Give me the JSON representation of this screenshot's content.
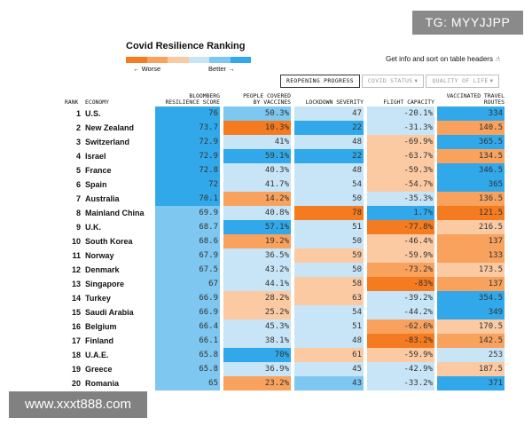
{
  "badge": "TG: MYYJJPP",
  "watermark": "www.xxxt888.com",
  "title": "Covid Resilience Ranking",
  "legend": {
    "worse": "← Worse",
    "better": "Better →",
    "colors": [
      "#f47b20",
      "#f8a25e",
      "#fbcaa3",
      "#c8e5f7",
      "#7dc7f0",
      "#31a8ea"
    ]
  },
  "info": {
    "text": "Get info and sort on table headers",
    "icon": "pointing-hand-icon"
  },
  "tabs": [
    {
      "label": "REOPENING PROGRESS",
      "arrow": ""
    },
    {
      "label": "COVID STATUS",
      "arrow": "▼"
    },
    {
      "label": "QUALITY OF LIFE",
      "arrow": "▼"
    }
  ],
  "headers": {
    "rank": "RANK",
    "economy": "ECONOMY",
    "resilience": [
      "BLOOMBERG",
      "RESILIENCE SCORE"
    ],
    "vaccines": [
      "PEOPLE COVERED",
      "BY VACCINES"
    ],
    "lockdown": "LOCKDOWN SEVERITY",
    "flight": "FLIGHT CAPACITY",
    "routes": [
      "VACCINATED TRAVEL",
      "ROUTES"
    ]
  },
  "rows": [
    {
      "rank": "1",
      "economy": "U.S.",
      "res": "76",
      "vac": "50.3%",
      "lock": "47",
      "flight": "-20.1%",
      "routes": "334",
      "colors": [
        "#31a8ea",
        "#7dc7f0",
        "#c8e5f7",
        "#c8e5f7",
        "#31a8ea"
      ]
    },
    {
      "rank": "2",
      "economy": "New Zealand",
      "res": "73.7",
      "vac": "10.3%",
      "lock": "22",
      "flight": "-31.3%",
      "routes": "140.5",
      "colors": [
        "#31a8ea",
        "#f47b20",
        "#31a8ea",
        "#c8e5f7",
        "#f8a25e"
      ]
    },
    {
      "rank": "3",
      "economy": "Switzerland",
      "res": "72.9",
      "vac": "41%",
      "lock": "48",
      "flight": "-69.9%",
      "routes": "365.5",
      "colors": [
        "#31a8ea",
        "#c8e5f7",
        "#c8e5f7",
        "#fbcaa3",
        "#31a8ea"
      ]
    },
    {
      "rank": "4",
      "economy": "Israel",
      "res": "72.9",
      "vac": "59.1%",
      "lock": "22",
      "flight": "-63.7%",
      "routes": "134.5",
      "colors": [
        "#31a8ea",
        "#31a8ea",
        "#31a8ea",
        "#fbcaa3",
        "#f8a25e"
      ]
    },
    {
      "rank": "5",
      "economy": "France",
      "res": "72.8",
      "vac": "40.3%",
      "lock": "48",
      "flight": "-59.3%",
      "routes": "346.5",
      "colors": [
        "#31a8ea",
        "#c8e5f7",
        "#c8e5f7",
        "#fbcaa3",
        "#31a8ea"
      ]
    },
    {
      "rank": "6",
      "economy": "Spain",
      "res": "72",
      "vac": "41.7%",
      "lock": "54",
      "flight": "-54.7%",
      "routes": "365",
      "colors": [
        "#31a8ea",
        "#c8e5f7",
        "#c8e5f7",
        "#fbcaa3",
        "#31a8ea"
      ]
    },
    {
      "rank": "7",
      "economy": "Australia",
      "res": "70.1",
      "vac": "14.2%",
      "lock": "50",
      "flight": "-35.3%",
      "routes": "136.5",
      "colors": [
        "#31a8ea",
        "#f8a25e",
        "#c8e5f7",
        "#c8e5f7",
        "#f8a25e"
      ]
    },
    {
      "rank": "8",
      "economy": "Mainland China",
      "res": "69.9",
      "vac": "40.8%",
      "lock": "78",
      "flight": "1.7%",
      "routes": "121.5",
      "colors": [
        "#7dc7f0",
        "#c8e5f7",
        "#f47b20",
        "#31a8ea",
        "#f47b20"
      ]
    },
    {
      "rank": "9",
      "economy": "U.K.",
      "res": "68.7",
      "vac": "57.1%",
      "lock": "51",
      "flight": "-77.8%",
      "routes": "216.5",
      "colors": [
        "#7dc7f0",
        "#31a8ea",
        "#c8e5f7",
        "#f47b20",
        "#fbcaa3"
      ]
    },
    {
      "rank": "10",
      "economy": "South Korea",
      "res": "68.6",
      "vac": "19.2%",
      "lock": "50",
      "flight": "-46.4%",
      "routes": "137",
      "colors": [
        "#7dc7f0",
        "#f8a25e",
        "#c8e5f7",
        "#fbcaa3",
        "#f8a25e"
      ]
    },
    {
      "rank": "11",
      "economy": "Norway",
      "res": "67.9",
      "vac": "36.5%",
      "lock": "59",
      "flight": "-59.9%",
      "routes": "133",
      "colors": [
        "#7dc7f0",
        "#c8e5f7",
        "#fbcaa3",
        "#fbcaa3",
        "#f8a25e"
      ]
    },
    {
      "rank": "12",
      "economy": "Denmark",
      "res": "67.5",
      "vac": "43.2%",
      "lock": "50",
      "flight": "-73.2%",
      "routes": "173.5",
      "colors": [
        "#7dc7f0",
        "#c8e5f7",
        "#c8e5f7",
        "#f8a25e",
        "#fbcaa3"
      ]
    },
    {
      "rank": "13",
      "economy": "Singapore",
      "res": "67",
      "vac": "44.1%",
      "lock": "58",
      "flight": "-83%",
      "routes": "137",
      "colors": [
        "#7dc7f0",
        "#c8e5f7",
        "#fbcaa3",
        "#f47b20",
        "#f8a25e"
      ]
    },
    {
      "rank": "14",
      "economy": "Turkey",
      "res": "66.9",
      "vac": "28.2%",
      "lock": "63",
      "flight": "-39.2%",
      "routes": "354.5",
      "colors": [
        "#7dc7f0",
        "#fbcaa3",
        "#fbcaa3",
        "#c8e5f7",
        "#31a8ea"
      ]
    },
    {
      "rank": "15",
      "economy": "Saudi Arabia",
      "res": "66.9",
      "vac": "25.2%",
      "lock": "54",
      "flight": "-44.2%",
      "routes": "349",
      "colors": [
        "#7dc7f0",
        "#fbcaa3",
        "#c8e5f7",
        "#c8e5f7",
        "#31a8ea"
      ]
    },
    {
      "rank": "16",
      "economy": "Belgium",
      "res": "66.4",
      "vac": "45.3%",
      "lock": "51",
      "flight": "-62.6%",
      "routes": "170.5",
      "colors": [
        "#7dc7f0",
        "#c8e5f7",
        "#c8e5f7",
        "#f8a25e",
        "#fbcaa3"
      ]
    },
    {
      "rank": "17",
      "economy": "Finland",
      "res": "66.1",
      "vac": "38.1%",
      "lock": "48",
      "flight": "-83.2%",
      "routes": "142.5",
      "colors": [
        "#7dc7f0",
        "#c8e5f7",
        "#c8e5f7",
        "#f47b20",
        "#f8a25e"
      ]
    },
    {
      "rank": "18",
      "economy": "U.A.E.",
      "res": "65.8",
      "vac": "70%",
      "lock": "61",
      "flight": "-59.9%",
      "routes": "253",
      "colors": [
        "#7dc7f0",
        "#31a8ea",
        "#fbcaa3",
        "#fbcaa3",
        "#c8e5f7"
      ]
    },
    {
      "rank": "19",
      "economy": "Greece",
      "res": "65.8",
      "vac": "36.9%",
      "lock": "45",
      "flight": "-42.9%",
      "routes": "187.5",
      "colors": [
        "#7dc7f0",
        "#c8e5f7",
        "#c8e5f7",
        "#c8e5f7",
        "#fbcaa3"
      ]
    },
    {
      "rank": "20",
      "economy": "Romania",
      "res": "65",
      "vac": "23.2%",
      "lock": "43",
      "flight": "-33.2%",
      "routes": "371",
      "colors": [
        "#7dc7f0",
        "#f8a25e",
        "#7dc7f0",
        "#c8e5f7",
        "#31a8ea"
      ]
    }
  ]
}
